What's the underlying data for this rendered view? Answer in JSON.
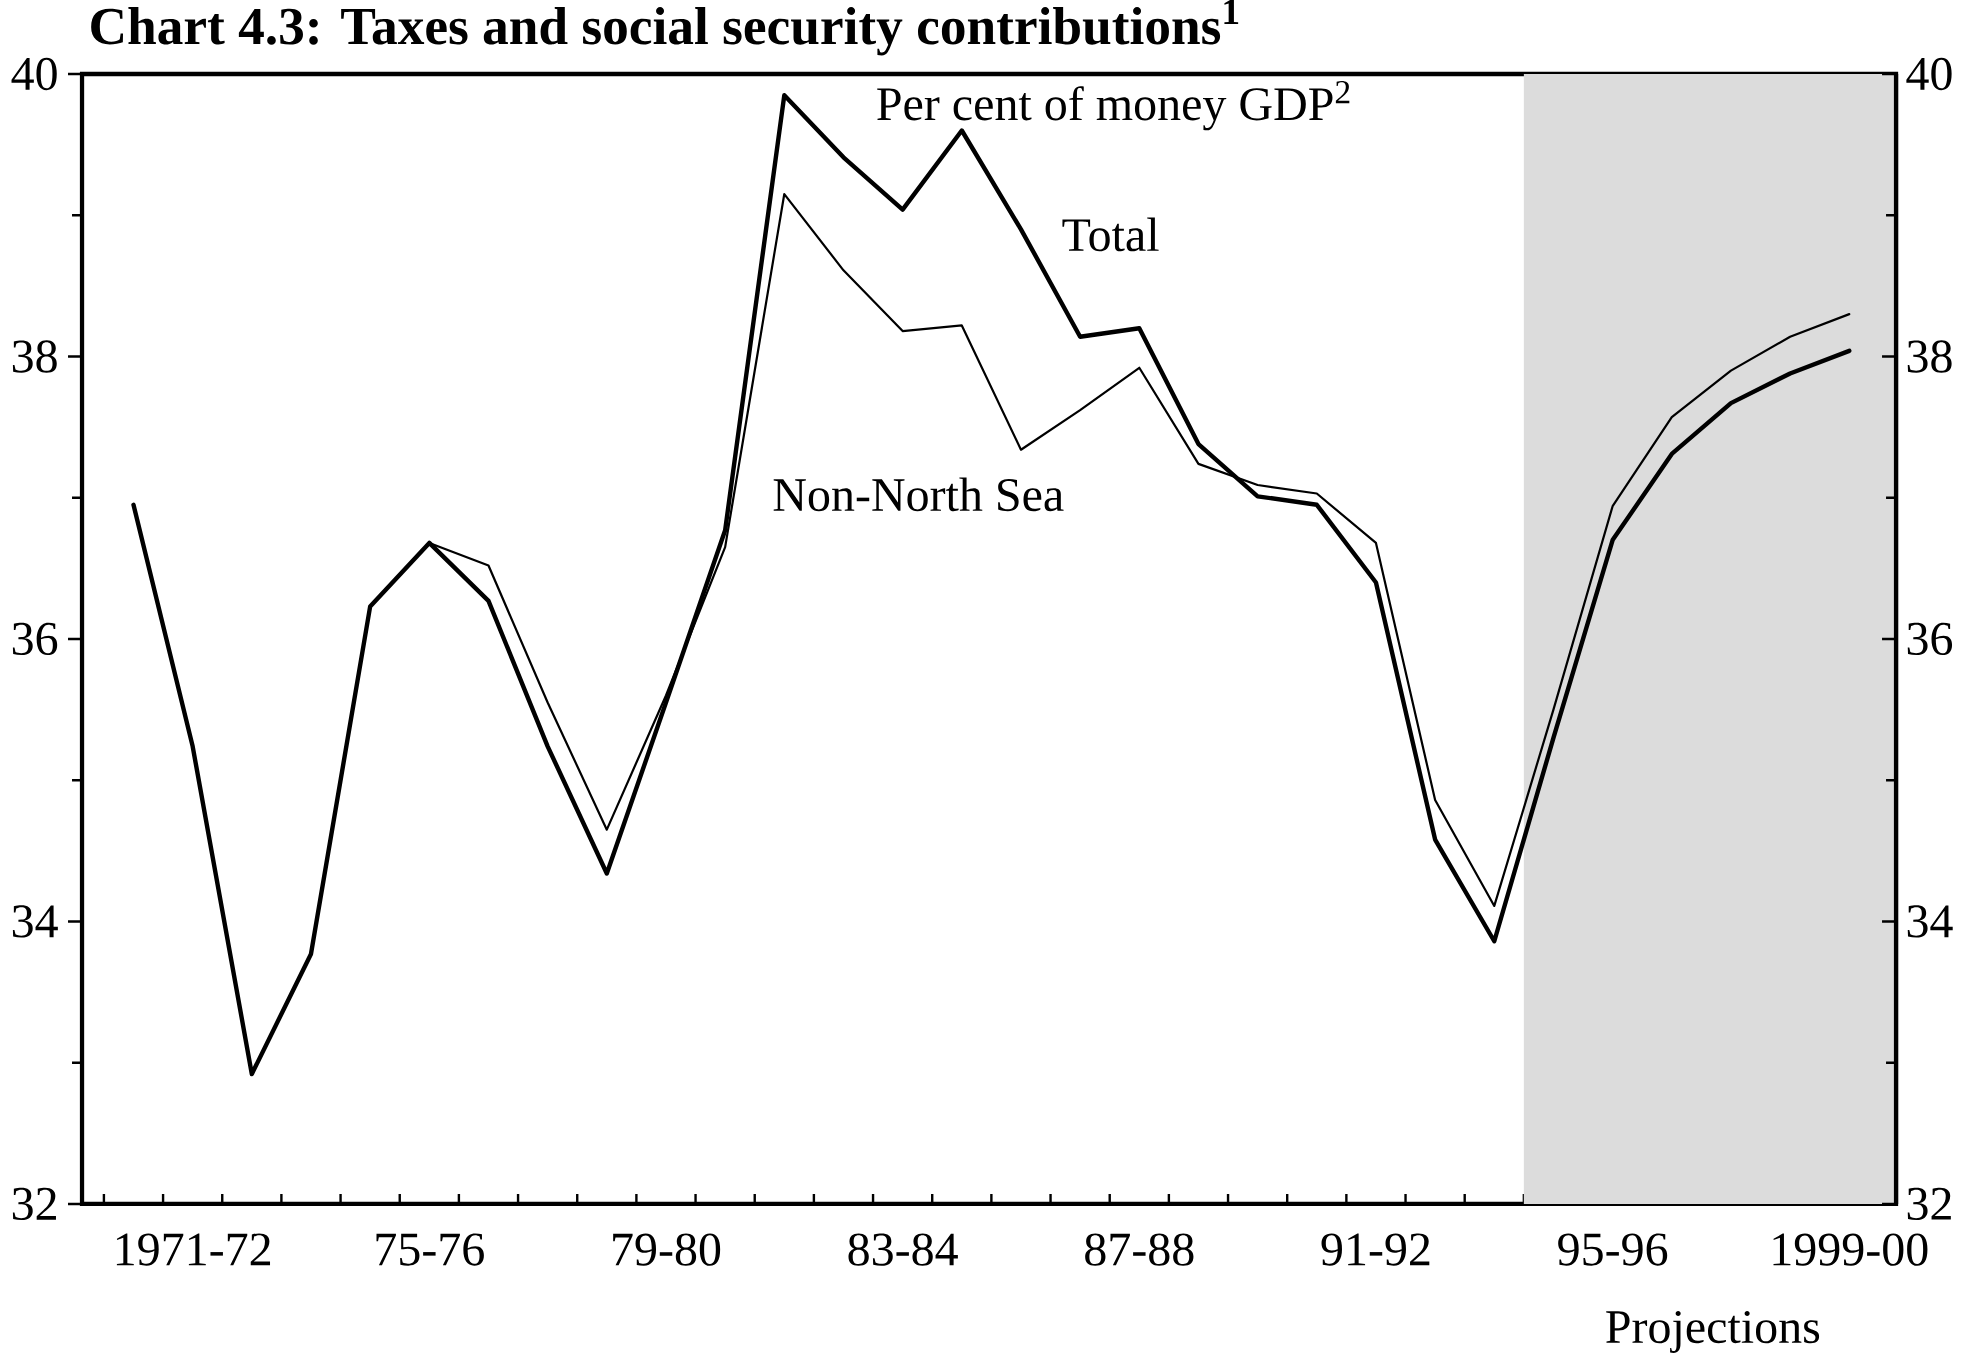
{
  "chart_data": {
    "type": "line",
    "title": "Chart 4.3: Taxes and social security contributions$^{1}$",
    "ylabel": "Per cent of money GDP$^{2}$",
    "categories": [
      null,
      "1971-72",
      null,
      null,
      null,
      "75-76",
      null,
      null,
      null,
      "79-80",
      null,
      null,
      null,
      "83-84",
      null,
      null,
      null,
      "87-88",
      null,
      null,
      null,
      "91-92",
      null,
      null,
      null,
      "95-96",
      null,
      null,
      null,
      "1999-00"
    ],
    "series": [
      {
        "name": "Total",
        "color": "#000000",
        "values": [
          36.95,
          35.24,
          32.92,
          33.77,
          36.23,
          36.68,
          36.27,
          35.24,
          34.34,
          35.55,
          36.77,
          39.85,
          39.41,
          39.04,
          39.6,
          38.9,
          38.14,
          38.2,
          37.38,
          37.01,
          36.95,
          36.4,
          34.58,
          33.86,
          35.3,
          36.7,
          37.31,
          37.67,
          37.88,
          38.04
        ]
      },
      {
        "name": "Non-North Sea",
        "color": "#000000",
        "values": [
          null,
          null,
          null,
          null,
          null,
          36.68,
          36.52,
          35.55,
          34.65,
          35.6,
          36.65,
          39.15,
          38.61,
          38.18,
          38.22,
          37.34,
          37.62,
          37.92,
          37.24,
          37.09,
          37.03,
          36.68,
          34.86,
          34.11,
          35.5,
          36.94,
          37.57,
          37.9,
          38.14,
          38.3
        ]
      }
    ],
    "ylim": [
      32,
      40
    ],
    "yticks": [
      32,
      {
        "value": 33,
        "label": null
      },
      34,
      {
        "value": 35,
        "label": null
      },
      36,
      {
        "value": 37,
        "label": null
      },
      38,
      {
        "value": 39,
        "label": null
      },
      40
    ],
    "y2lim": [
      32,
      40
    ],
    "y2ticks": [
      32,
      {
        "value": 33,
        "label": null
      },
      34,
      {
        "value": 35,
        "label": null
      },
      36,
      {
        "value": 37,
        "label": null
      },
      38,
      {
        "value": 39,
        "label": null
      },
      40
    ],
    "annotations": [
      "Projections"
    ]
  }
}
